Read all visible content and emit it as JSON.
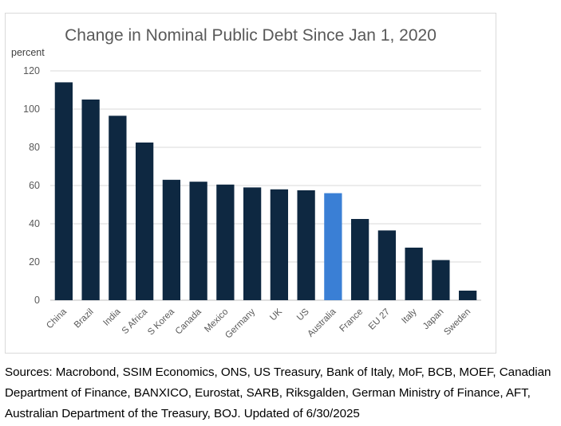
{
  "chart_data": {
    "type": "bar",
    "title": "Change in Nominal Public Debt Since Jan 1, 2020",
    "ylabel": "percent",
    "xlabel": "",
    "ylim": [
      0,
      120
    ],
    "yticks": [
      0,
      20,
      40,
      60,
      80,
      100,
      120
    ],
    "grid": true,
    "legend": "none",
    "categories": [
      "China",
      "Brazil",
      "India",
      "S Africa",
      "S Korea",
      "Canada",
      "Mexico",
      "Germany",
      "UK",
      "US",
      "Australia",
      "France",
      "EU 27",
      "Italy",
      "Japan",
      "Sweden"
    ],
    "values": [
      114,
      105,
      96.5,
      82.5,
      63,
      62,
      60.5,
      59,
      58,
      57.5,
      56,
      42.5,
      36.5,
      27.5,
      21,
      5
    ],
    "colors": {
      "default": "#0e2841",
      "highlight": "#3a7fd5",
      "grid": "#d9d9d9",
      "axis": "#bfbfbf"
    },
    "highlight_category": "Australia"
  },
  "footer": {
    "sources": "Sources: Macrobond, SSIM Economics, ONS, US Treasury, Bank of Italy, MoF, BCB, MOEF, Canadian Department of Finance, BANXICO, Eurostat, SARB, Riksgalden, German Ministry of Finance, AFT, Australian Department of the Treasury, BOJ. Updated of 6/30/2025"
  }
}
